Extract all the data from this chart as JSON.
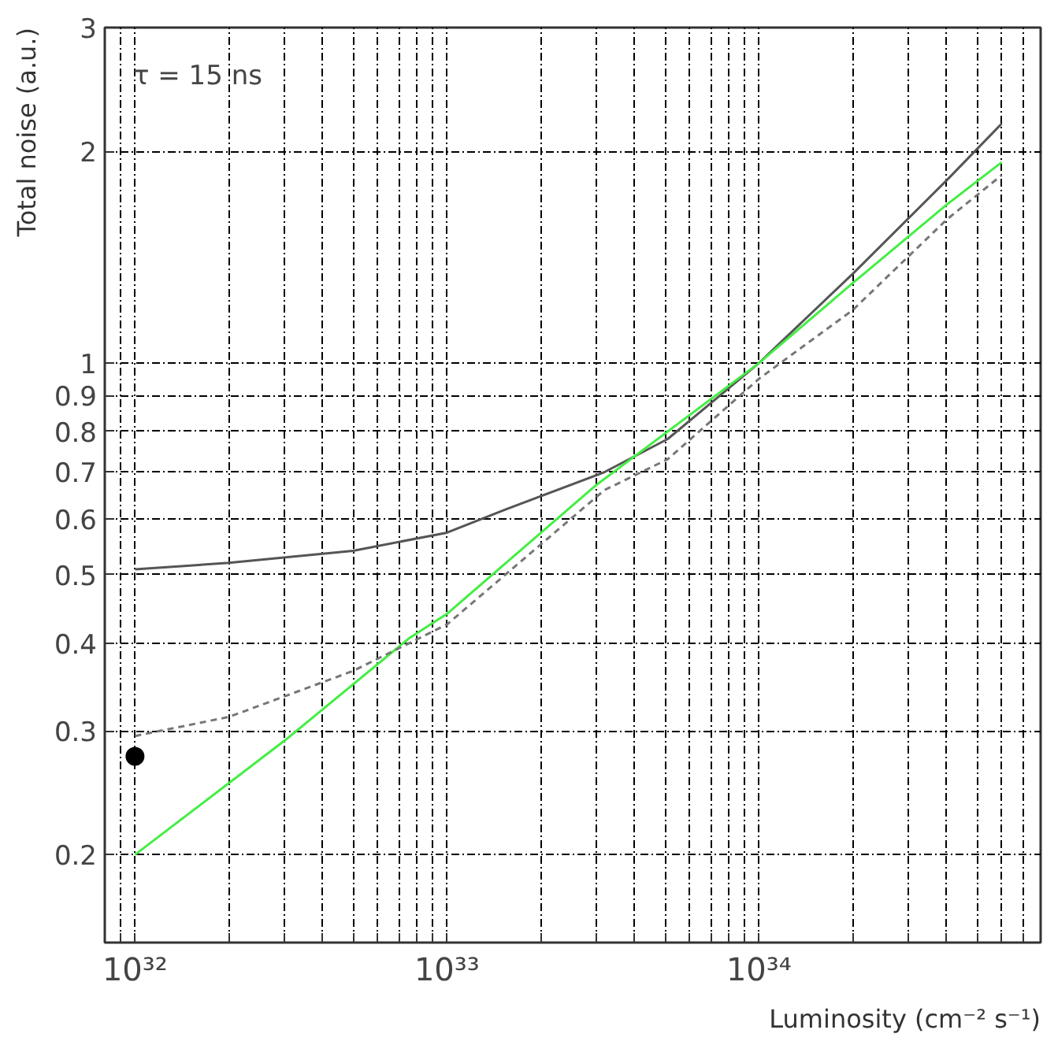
{
  "chart_data": {
    "type": "line",
    "xlabel": "Luminosity (cm⁻² s⁻¹)",
    "ylabel": "Total noise (a.u.)",
    "annotations": [
      "τ = 15 ns"
    ],
    "log": "xy",
    "grid": true,
    "marker": "none",
    "xlim": [
      8e+31,
      8e+34
    ],
    "ylim": [
      0.15,
      3
    ],
    "xticks": [
      {
        "value": 9e+31,
        "label": null
      },
      {
        "value": 1e+32,
        "label": "10³²"
      },
      {
        "value": 2e+32,
        "label": null
      },
      {
        "value": 3e+32,
        "label": null
      },
      {
        "value": 4e+32,
        "label": null
      },
      {
        "value": 5e+32,
        "label": null
      },
      {
        "value": 6e+32,
        "label": null
      },
      {
        "value": 7e+32,
        "label": null
      },
      {
        "value": 8e+32,
        "label": null
      },
      {
        "value": 9e+32,
        "label": null
      },
      {
        "value": 1e+33,
        "label": "10³³"
      },
      {
        "value": 2e+33,
        "label": null
      },
      {
        "value": 3e+33,
        "label": null
      },
      {
        "value": 4e+33,
        "label": null
      },
      {
        "value": 5e+33,
        "label": null
      },
      {
        "value": 6e+33,
        "label": null
      },
      {
        "value": 7e+33,
        "label": null
      },
      {
        "value": 8e+33,
        "label": null
      },
      {
        "value": 9e+33,
        "label": null
      },
      {
        "value": 1e+34,
        "label": "10³⁴"
      },
      {
        "value": 2e+34,
        "label": null
      },
      {
        "value": 3e+34,
        "label": null
      },
      {
        "value": 4e+34,
        "label": null
      },
      {
        "value": 5e+34,
        "label": null
      },
      {
        "value": 6e+34,
        "label": null
      },
      {
        "value": 7e+34,
        "label": null
      },
      {
        "value": 8e+34,
        "label": null
      }
    ],
    "yticks": [
      0.2,
      0.3,
      0.4,
      0.5,
      0.6,
      0.7,
      0.8,
      0.9,
      1,
      2,
      3
    ],
    "series": [
      {
        "color": "#555555",
        "line_style": "solid",
        "x": [
          1e+32,
          2e+32,
          5e+32,
          1e+33,
          1.55e+33,
          3.2e+33,
          5.1e+33,
          1e+34,
          2e+34,
          4e+34,
          6e+34
        ],
        "values": [
          0.509,
          0.52,
          0.541,
          0.574,
          0.62,
          0.7,
          0.78,
          1.0,
          1.34,
          1.82,
          2.19
        ]
      },
      {
        "color": "#44ee44",
        "line_style": "solid",
        "x": [
          1e+32,
          3e+32,
          7.55e+32,
          1e+33,
          3e+33,
          1e+34,
          2e+34,
          4e+34,
          6e+34
        ],
        "values": [
          0.2,
          0.29,
          0.406,
          0.44,
          0.67,
          1.0,
          1.3,
          1.68,
          1.93
        ]
      },
      {
        "color": "#777777",
        "line_style": "dashed",
        "x": [
          1e+32,
          2e+32,
          5e+32,
          1e+33,
          3.2e+33,
          5.1e+33,
          1e+34,
          2e+34,
          4e+34,
          6e+34
        ],
        "values": [
          0.295,
          0.314,
          0.365,
          0.425,
          0.66,
          0.73,
          0.95,
          1.19,
          1.6,
          1.85
        ]
      },
      {
        "type": "scatter",
        "color": "#000000",
        "marker": "circle",
        "x": [
          1e+32
        ],
        "values": [
          0.276
        ]
      }
    ]
  }
}
